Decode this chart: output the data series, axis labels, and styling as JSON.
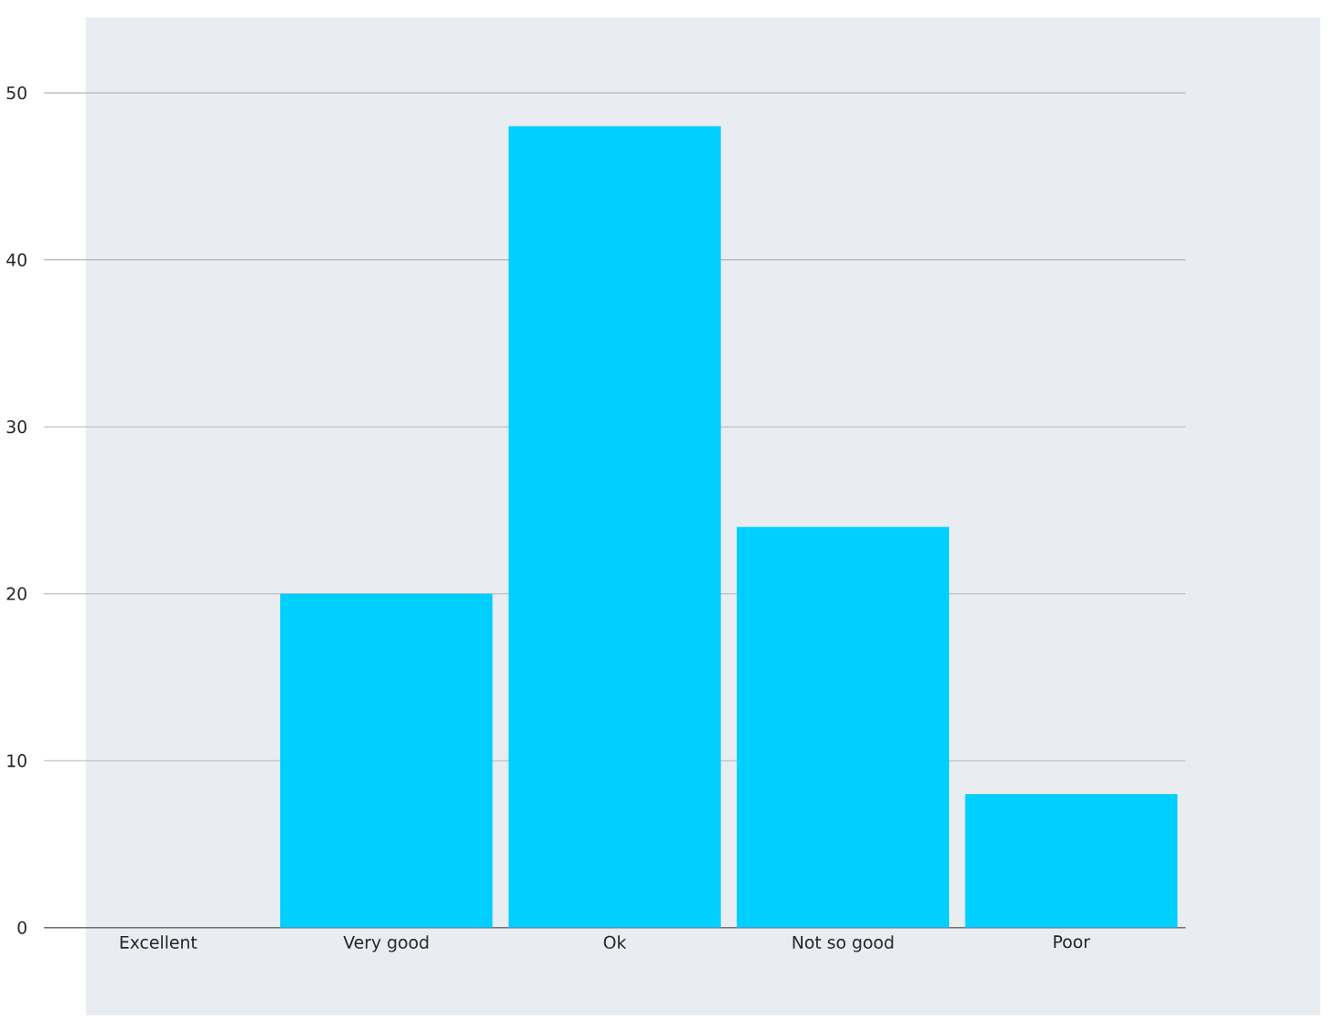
{
  "chart_data": {
    "type": "bar",
    "categories": [
      "Excellent",
      "Very good",
      "Ok",
      "Not so good",
      "Poor"
    ],
    "values": [
      0,
      20,
      48,
      24,
      8
    ],
    "color": "#00cfff",
    "ylim": [
      0,
      50
    ],
    "yticks": [
      0,
      10,
      20,
      30,
      40,
      50
    ],
    "grid": "y"
  }
}
